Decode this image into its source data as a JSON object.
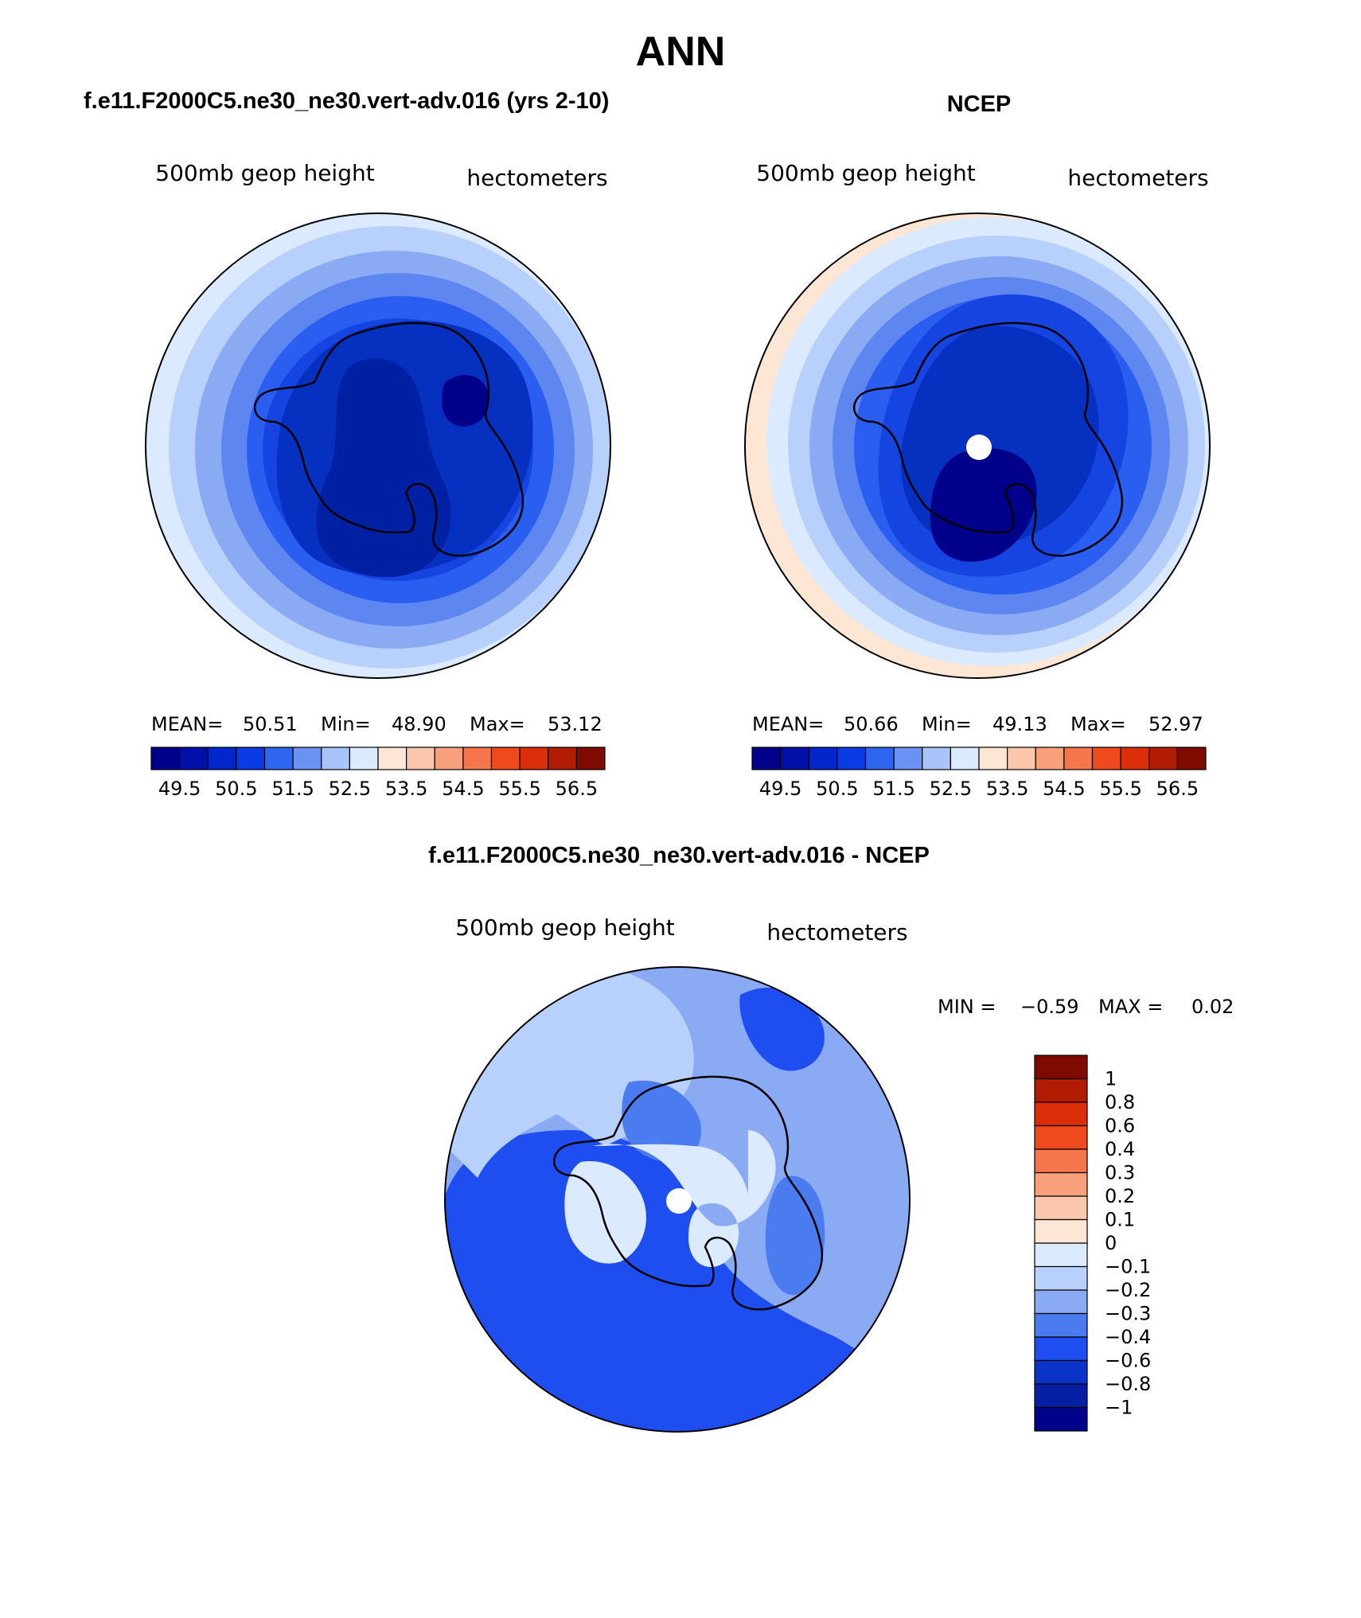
{
  "figure": {
    "title": "ANN",
    "panel_titles": {
      "model": "f.e11.F2000C5.ne30_ne30.vert-adv.016 (yrs 2-10)",
      "obs": "NCEP",
      "diff": "f.e11.F2000C5.ne30_ne30.vert-adv.016 - NCEP"
    }
  },
  "panels": [
    {
      "id": "model",
      "variable": "500mb geop height",
      "units": "hectometers",
      "stats": {
        "mean_label": "MEAN=",
        "mean": "50.51",
        "min_label": "Min=",
        "min": "48.90",
        "max_label": "Max=",
        "max": "53.12"
      }
    },
    {
      "id": "obs",
      "variable": "500mb geop height",
      "units": "hectometers",
      "stats": {
        "mean_label": "MEAN=",
        "mean": "50.66",
        "min_label": "Min=",
        "min": "49.13",
        "max_label": "Max=",
        "max": "52.97"
      }
    },
    {
      "id": "diff",
      "variable": "500mb geop height",
      "units": "hectometers",
      "stats": {
        "min_label": "MIN =",
        "min": "−0.59",
        "max_label": "MAX =",
        "max": "0.02"
      }
    }
  ],
  "colorbars": {
    "abs": {
      "colors": [
        "#00008a",
        "#0010a8",
        "#0026cc",
        "#0a3ce6",
        "#2e66f0",
        "#6a92f2",
        "#a8c4fa",
        "#dceaff",
        "#fde6d4",
        "#fbc7ac",
        "#f8a07a",
        "#f5764a",
        "#ee4a1e",
        "#dc2e08",
        "#b21c02",
        "#7e0a00"
      ],
      "labels": [
        "49.5",
        "50.5",
        "51.5",
        "52.5",
        "53.5",
        "54.5",
        "55.5",
        "56.5"
      ]
    },
    "diff": {
      "colors_top_to_bottom": [
        "#7e0a00",
        "#b21c02",
        "#dc2e08",
        "#ee4a1e",
        "#f5764a",
        "#f8a07a",
        "#fbc7ac",
        "#fde6d4",
        "#dceaff",
        "#b8d0fc",
        "#8aaaf4",
        "#4a7cf0",
        "#1e4ef0",
        "#0a34c8",
        "#0620a4",
        "#00008a"
      ],
      "labels": [
        "1",
        "0.8",
        "0.6",
        "0.4",
        "0.3",
        "0.2",
        "0.1",
        "0",
        "−0.1",
        "−0.2",
        "−0.3",
        "−0.4",
        "−0.6",
        "−0.8",
        "−1"
      ]
    }
  },
  "map_fill": {
    "model": [
      "#dceaff",
      "#b8d0fc",
      "#8aaaf4",
      "#5d86f0",
      "#2a5ef0",
      "#1644e0",
      "#0630c0",
      "#0020a4",
      "#00008a"
    ],
    "obs": [
      "#fde6d4",
      "#dceaff",
      "#b8d0fc",
      "#8aaaf4",
      "#5d86f0",
      "#2a5ef0",
      "#1644e0",
      "#0630c0",
      "#00008a"
    ],
    "diff": [
      "#8aaaf4",
      "#1e4ef0",
      "#b8d0fc",
      "#4a7cf0",
      "#dceaff"
    ]
  }
}
